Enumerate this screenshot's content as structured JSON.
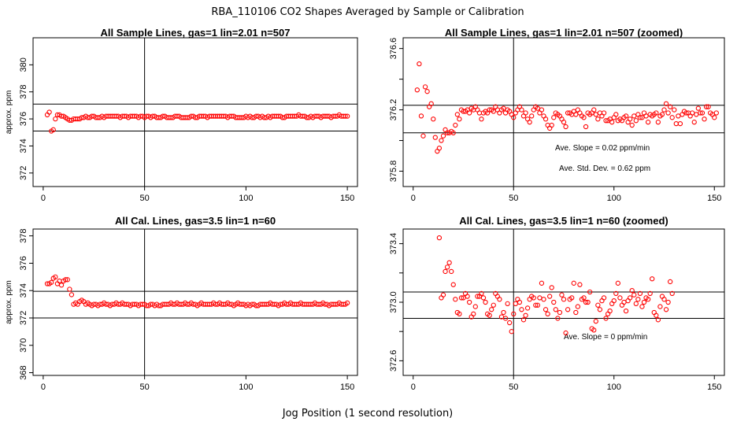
{
  "main_title": "RBA_110106  CO2 Shapes Averaged by Sample or Calibration",
  "x_axis_label": "Jog Position (1 second resolution)",
  "colors": {
    "points": "#ff0000",
    "axes": "#000000"
  },
  "chart_data": [
    {
      "type": "scatter",
      "title": "All Sample Lines, gas=1 lin=2.01 n=507",
      "ylabel": "approx. ppm",
      "xlim": [
        -5,
        155
      ],
      "ylim": [
        371,
        382
      ],
      "xticks": [
        0,
        50,
        100,
        150
      ],
      "yticks": [
        372,
        374,
        376,
        378,
        380
      ],
      "ref_hlines": [
        375.1,
        377.1
      ],
      "ref_vline": 50,
      "annotations": [],
      "series": [
        {
          "start_x": 2,
          "values": [
            376.3,
            376.5,
            375.1,
            375.2,
            376.0,
            376.3,
            376.3,
            376.2,
            376.2,
            376.1,
            376.0,
            375.9,
            375.9,
            376.0,
            376.0,
            376.0,
            376.0,
            376.1,
            376.1,
            376.2,
            376.1,
            376.1,
            376.2,
            376.2,
            376.1,
            376.1,
            376.1,
            376.2,
            376.1,
            376.2,
            376.2,
            376.2,
            376.2,
            376.2,
            376.2,
            376.2,
            376.1,
            376.2,
            376.2,
            376.2,
            376.1,
            376.2,
            376.2,
            376.2,
            376.2,
            376.1,
            376.2,
            376.2,
            376.1,
            376.2,
            376.2,
            376.1,
            376.2,
            376.2,
            376.1,
            376.1,
            376.1,
            376.2,
            376.2,
            376.1,
            376.1,
            376.1,
            376.1,
            376.2,
            376.2,
            376.2,
            376.1,
            376.1,
            376.1,
            376.1,
            376.1,
            376.2,
            376.2,
            376.1,
            376.1,
            376.2,
            376.2,
            376.2,
            376.2,
            376.1,
            376.2,
            376.2,
            376.2,
            376.2,
            376.2,
            376.2,
            376.2,
            376.2,
            376.2,
            376.1,
            376.2,
            376.2,
            376.2,
            376.1,
            376.1,
            376.1,
            376.1,
            376.1,
            376.2,
            376.1,
            376.2,
            376.1,
            376.1,
            376.2,
            376.2,
            376.1,
            376.2,
            376.1,
            376.1,
            376.2,
            376.1,
            376.2,
            376.2,
            376.2,
            376.2,
            376.2,
            376.1,
            376.1,
            376.2,
            376.2,
            376.2,
            376.2,
            376.2,
            376.2,
            376.3,
            376.2,
            376.2,
            376.2,
            376.1,
            376.1,
            376.2,
            376.1,
            376.2,
            376.2,
            376.2,
            376.1,
            376.2,
            376.2,
            376.2,
            376.2,
            376.1,
            376.2,
            376.2,
            376.2,
            376.3,
            376.2,
            376.2,
            376.2,
            376.2
          ]
        }
      ]
    },
    {
      "type": "scatter",
      "title": "All Sample Lines, gas=1 lin=2.01 n=507 (zoomed)",
      "ylabel": "",
      "xlim": [
        -5,
        155
      ],
      "ylim": [
        375.7,
        376.67
      ],
      "xticks": [
        0,
        50,
        100,
        150
      ],
      "yticks": [
        375.8,
        376.0,
        376.2,
        376.4,
        376.6
      ],
      "ytick_labels": [
        "375.8",
        "",
        "376.2",
        "",
        "376.6"
      ],
      "ref_hlines": [
        376.05,
        376.23
      ],
      "ref_vline": 50,
      "annotations": [
        "Ave. Slope =  0.02  ppm/min",
        "Ave. Std. Dev. =  0.62  ppm"
      ],
      "series": [
        {
          "start_x": 2,
          "values": [
            376.33,
            376.5,
            376.16,
            376.03,
            376.35,
            376.32,
            376.22,
            376.24,
            376.14,
            376.02,
            375.93,
            375.95,
            376.0,
            376.03,
            376.07,
            376.05,
            376.05,
            376.06,
            376.05,
            376.1,
            376.17,
            376.14,
            376.2,
            376.19,
            376.19,
            376.2,
            376.18,
            376.21,
            376.2,
            376.22,
            376.2,
            376.18,
            376.14,
            376.18,
            376.19,
            376.18,
            376.2,
            376.2,
            376.19,
            376.22,
            376.2,
            376.18,
            376.2,
            376.21,
            376.18,
            376.2,
            376.19,
            376.17,
            376.15,
            376.18,
            376.2,
            376.22,
            376.2,
            376.16,
            376.18,
            376.14,
            376.12,
            376.16,
            376.2,
            376.22,
            376.21,
            376.18,
            376.2,
            376.16,
            376.14,
            376.1,
            376.08,
            376.1,
            376.15,
            376.18,
            376.17,
            376.16,
            376.14,
            376.12,
            376.09,
            376.18,
            376.18,
            376.17,
            376.19,
            376.17,
            376.2,
            376.18,
            376.16,
            376.15,
            376.09,
            376.18,
            376.17,
            376.18,
            376.2,
            376.17,
            376.14,
            376.18,
            376.16,
            376.18,
            376.13,
            376.13,
            376.14,
            376.12,
            376.15,
            376.17,
            376.13,
            376.14,
            376.13,
            376.15,
            376.16,
            376.12,
            376.14,
            376.1,
            376.16,
            376.13,
            376.17,
            376.15,
            376.15,
            376.18,
            376.16,
            376.12,
            376.17,
            376.16,
            376.17,
            376.18,
            376.12,
            376.16,
            376.17,
            376.2,
            376.24,
            376.18,
            376.22,
            376.15,
            376.2,
            376.11,
            376.16,
            376.11,
            376.17,
            376.19,
            376.18,
            376.18,
            376.16,
            376.18,
            376.12,
            376.17,
            376.21,
            376.18,
            376.18,
            376.14,
            376.22,
            376.22,
            376.18,
            376.17,
            376.15,
            376.18
          ]
        }
      ]
    },
    {
      "type": "scatter",
      "title": "All Cal. Lines, gas=3.5 lin=1 n=60",
      "ylabel": "approx. ppm",
      "xlim": [
        -5,
        155
      ],
      "ylim": [
        367.8,
        378.5
      ],
      "xticks": [
        0,
        50,
        100,
        150
      ],
      "yticks": [
        368,
        370,
        372,
        374,
        376,
        378
      ],
      "ref_hlines": [
        372.0,
        373.95
      ],
      "ref_vline": 50,
      "annotations": [],
      "series": [
        {
          "start_x": 2,
          "values": [
            374.5,
            374.5,
            374.6,
            374.9,
            375.0,
            374.5,
            374.7,
            374.4,
            374.7,
            374.8,
            374.8,
            374.1,
            373.7,
            373.0,
            373.1,
            373.0,
            373.2,
            373.3,
            373.2,
            373.0,
            373.1,
            373.0,
            372.9,
            373.0,
            373.0,
            372.9,
            373.0,
            373.0,
            373.1,
            373.0,
            373.0,
            372.9,
            373.0,
            373.0,
            373.1,
            373.0,
            373.0,
            373.1,
            373.0,
            373.0,
            373.0,
            372.9,
            373.0,
            373.0,
            373.0,
            372.9,
            373.0,
            373.0,
            373.0,
            372.9,
            372.9,
            373.0,
            373.0,
            372.9,
            373.0,
            372.9,
            372.9,
            373.0,
            373.0,
            373.0,
            373.0,
            373.1,
            373.0,
            373.0,
            373.1,
            373.0,
            373.0,
            373.0,
            373.1,
            373.0,
            373.0,
            373.1,
            373.0,
            373.0,
            372.9,
            373.0,
            373.1,
            373.0,
            373.0,
            373.0,
            373.0,
            373.0,
            373.1,
            373.0,
            373.0,
            373.1,
            373.0,
            373.0,
            373.0,
            373.1,
            373.0,
            373.0,
            372.9,
            373.0,
            373.1,
            373.0,
            373.0,
            373.0,
            372.9,
            373.0,
            372.9,
            373.0,
            373.0,
            372.9,
            372.9,
            373.0,
            373.0,
            373.0,
            373.0,
            373.0,
            373.1,
            373.0,
            373.0,
            373.0,
            372.9,
            373.0,
            373.0,
            373.1,
            373.0,
            373.0,
            373.1,
            373.0,
            373.0,
            373.0,
            373.0,
            373.1,
            373.0,
            373.0,
            373.0,
            373.0,
            373.0,
            373.0,
            373.1,
            373.0,
            373.0,
            373.0,
            373.1,
            373.0,
            373.0,
            372.9,
            373.0,
            373.0,
            373.0,
            373.0,
            373.1,
            373.0,
            373.0,
            373.0,
            373.1
          ]
        }
      ]
    },
    {
      "type": "scatter",
      "title": "All Cal. Lines, gas=3.5 lin=1 n=60 (zoomed)",
      "ylabel": "",
      "xlim": [
        -5,
        155
      ],
      "ylim": [
        372.5,
        373.5
      ],
      "xticks": [
        0,
        50,
        100,
        150
      ],
      "yticks": [
        372.6,
        372.8,
        373.0,
        373.2,
        373.4
      ],
      "ytick_labels": [
        "372.6",
        "",
        "373.0",
        "",
        "373.4"
      ],
      "ref_hlines": [
        372.89,
        373.07
      ],
      "ref_vline": 50,
      "annotations": [
        "Ave. Slope =  0  ppm/min"
      ],
      "series": [
        {
          "start_x": 13,
          "values": [
            373.44,
            373.03,
            373.05,
            373.21,
            373.24,
            373.27,
            373.21,
            373.12,
            373.02,
            372.93,
            372.92,
            373.03,
            373.03,
            373.06,
            373.04,
            373.0,
            372.9,
            372.92,
            372.97,
            373.04,
            373.04,
            373.06,
            373.03,
            373.0,
            372.92,
            372.91,
            372.95,
            372.98,
            373.06,
            373.04,
            373.02,
            372.9,
            372.93,
            372.89,
            372.99,
            372.86,
            372.8,
            372.92,
            372.99,
            373.02,
            373.0,
            372.95,
            372.88,
            372.91,
            372.96,
            373.02,
            373.04,
            373.03,
            372.98,
            372.98,
            373.03,
            373.13,
            373.02,
            372.95,
            372.92,
            373.04,
            373.1,
            373.0,
            372.95,
            372.89,
            372.93,
            373.05,
            373.02,
            372.79,
            372.95,
            373.02,
            373.03,
            373.13,
            372.93,
            372.97,
            373.12,
            373.02,
            373.03,
            373.0,
            373.0,
            373.07,
            372.82,
            372.81,
            372.87,
            372.98,
            372.95,
            373.01,
            373.03,
            372.89,
            372.92,
            372.94,
            372.99,
            373.01,
            373.06,
            373.13,
            373.03,
            372.98,
            373.0,
            372.94,
            373.01,
            373.03,
            373.08,
            373.05,
            372.99,
            373.02,
            373.06,
            372.97,
            373.0,
            373.03,
            373.02,
            373.06,
            373.16,
            372.93,
            372.91,
            372.88,
            372.97,
            373.04,
            373.02,
            372.95,
            373.0,
            373.14,
            373.06
          ]
        }
      ]
    }
  ]
}
